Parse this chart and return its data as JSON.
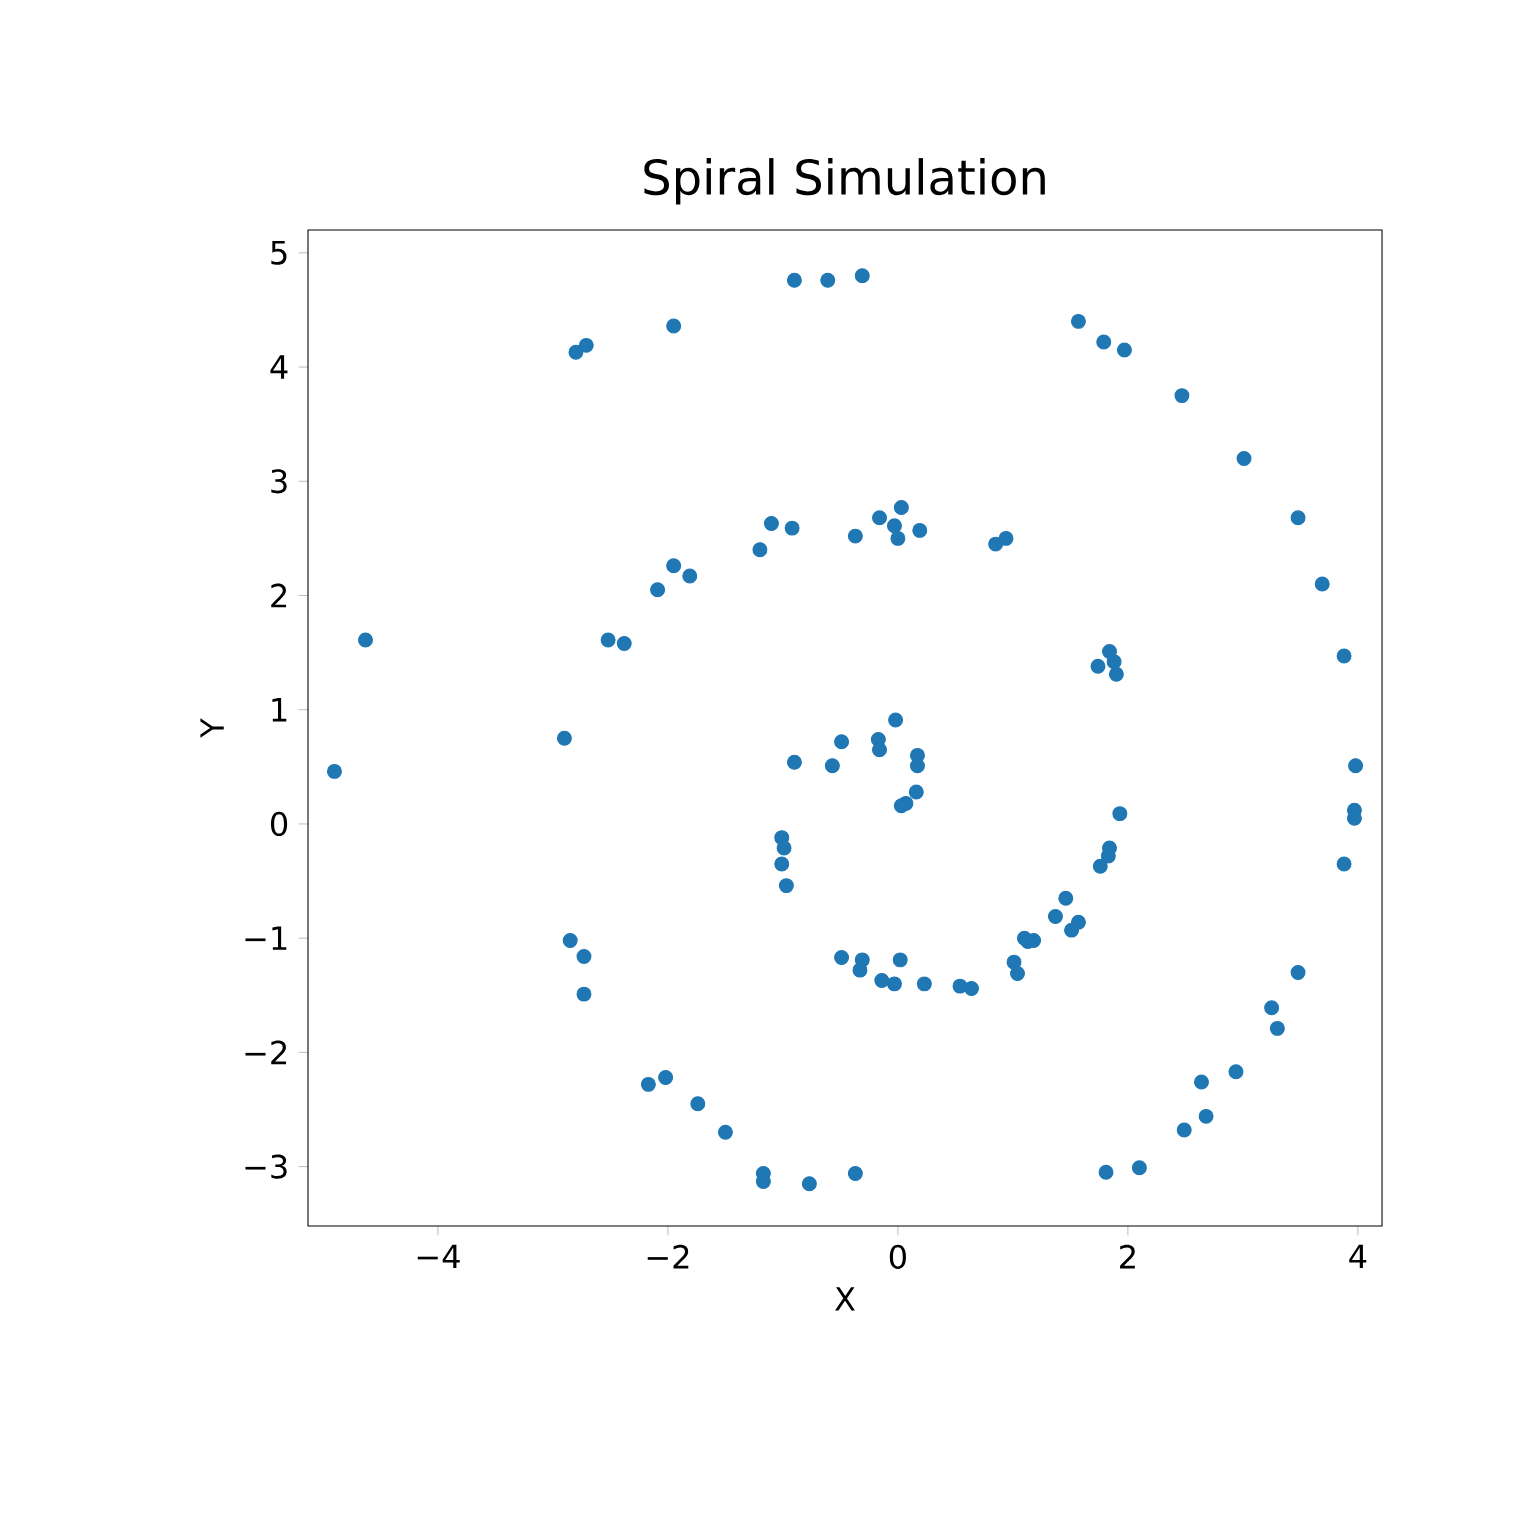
{
  "chart_data": {
    "type": "scatter",
    "title": "Spiral Simulation",
    "xlabel": "X",
    "ylabel": "Y",
    "x": [
      -0.31,
      -0.61,
      -0.9,
      -1.95,
      -2.71,
      -2.8,
      1.57,
      1.79,
      1.97,
      2.47,
      3.01,
      3.48,
      3.69,
      3.88,
      3.98,
      3.97,
      3.97,
      3.88,
      3.48,
      3.25,
      3.3,
      2.94,
      2.64,
      2.68,
      2.49,
      2.1,
      1.81,
      -0.37,
      -0.77,
      -1.17,
      -1.17,
      -1.5,
      -1.74,
      -2.02,
      -2.17,
      -2.73,
      -2.73,
      -2.85,
      -2.9,
      -4.9,
      -4.63,
      -1.1,
      -0.92,
      -1.2,
      -1.95,
      -2.09,
      -1.81,
      -2.52,
      -2.38,
      -0.37,
      -0.16,
      0.03,
      -0.03,
      0.0,
      0.19,
      0.85,
      0.94,
      1.84,
      1.88,
      1.74,
      1.9,
      1.93,
      1.84,
      1.83,
      1.76,
      1.46,
      1.37,
      1.57,
      1.51,
      1.18,
      1.1,
      1.13,
      1.01,
      1.04,
      0.54,
      0.64,
      0.23,
      0.02,
      -0.03,
      -0.14,
      -0.31,
      -0.33,
      -0.49,
      -1.01,
      -0.99,
      -1.01,
      -0.97,
      -0.9,
      -0.57,
      -0.49,
      -0.17,
      -0.16,
      -0.02,
      0.17,
      0.17,
      0.16,
      0.07,
      0.03
    ],
    "values": [
      4.8,
      4.76,
      4.76,
      4.36,
      4.19,
      4.13,
      4.4,
      4.22,
      4.15,
      3.75,
      3.2,
      2.68,
      2.1,
      1.47,
      0.51,
      0.12,
      0.05,
      -0.35,
      -1.3,
      -1.61,
      -1.79,
      -2.17,
      -2.26,
      -2.56,
      -2.68,
      -3.01,
      -3.05,
      -3.06,
      -3.15,
      -3.06,
      -3.13,
      -2.7,
      -2.45,
      -2.22,
      -2.28,
      -1.49,
      -1.16,
      -1.02,
      0.75,
      0.46,
      1.61,
      2.63,
      2.59,
      2.4,
      2.26,
      2.05,
      2.17,
      1.61,
      1.58,
      2.52,
      2.68,
      2.77,
      2.61,
      2.5,
      2.57,
      2.45,
      2.5,
      1.51,
      1.42,
      1.38,
      1.31,
      0.09,
      -0.21,
      -0.28,
      -0.37,
      -0.65,
      -0.81,
      -0.86,
      -0.93,
      -1.02,
      -1.0,
      -1.03,
      -1.21,
      -1.31,
      -1.42,
      -1.44,
      -1.4,
      -1.19,
      -1.4,
      -1.37,
      -1.19,
      -1.28,
      -1.17,
      -0.12,
      -0.21,
      -0.35,
      -0.54,
      0.54,
      0.51,
      0.72,
      0.74,
      0.65,
      0.91,
      0.6,
      0.51,
      0.28,
      0.18,
      0.16
    ],
    "color": "#1f77b4",
    "marker": "circle",
    "xlim": [
      -5.13,
      4.21
    ],
    "ylim": [
      -3.52,
      5.2
    ],
    "xticks": [
      {
        "value": -4,
        "label": "−4"
      },
      {
        "value": -2,
        "label": "−2"
      },
      0,
      2,
      4
    ],
    "yticks": [
      {
        "value": -3,
        "label": "−3"
      },
      {
        "value": -2,
        "label": "−2"
      },
      {
        "value": -1,
        "label": "−1"
      },
      0,
      1,
      2,
      3,
      4,
      5
    ]
  }
}
